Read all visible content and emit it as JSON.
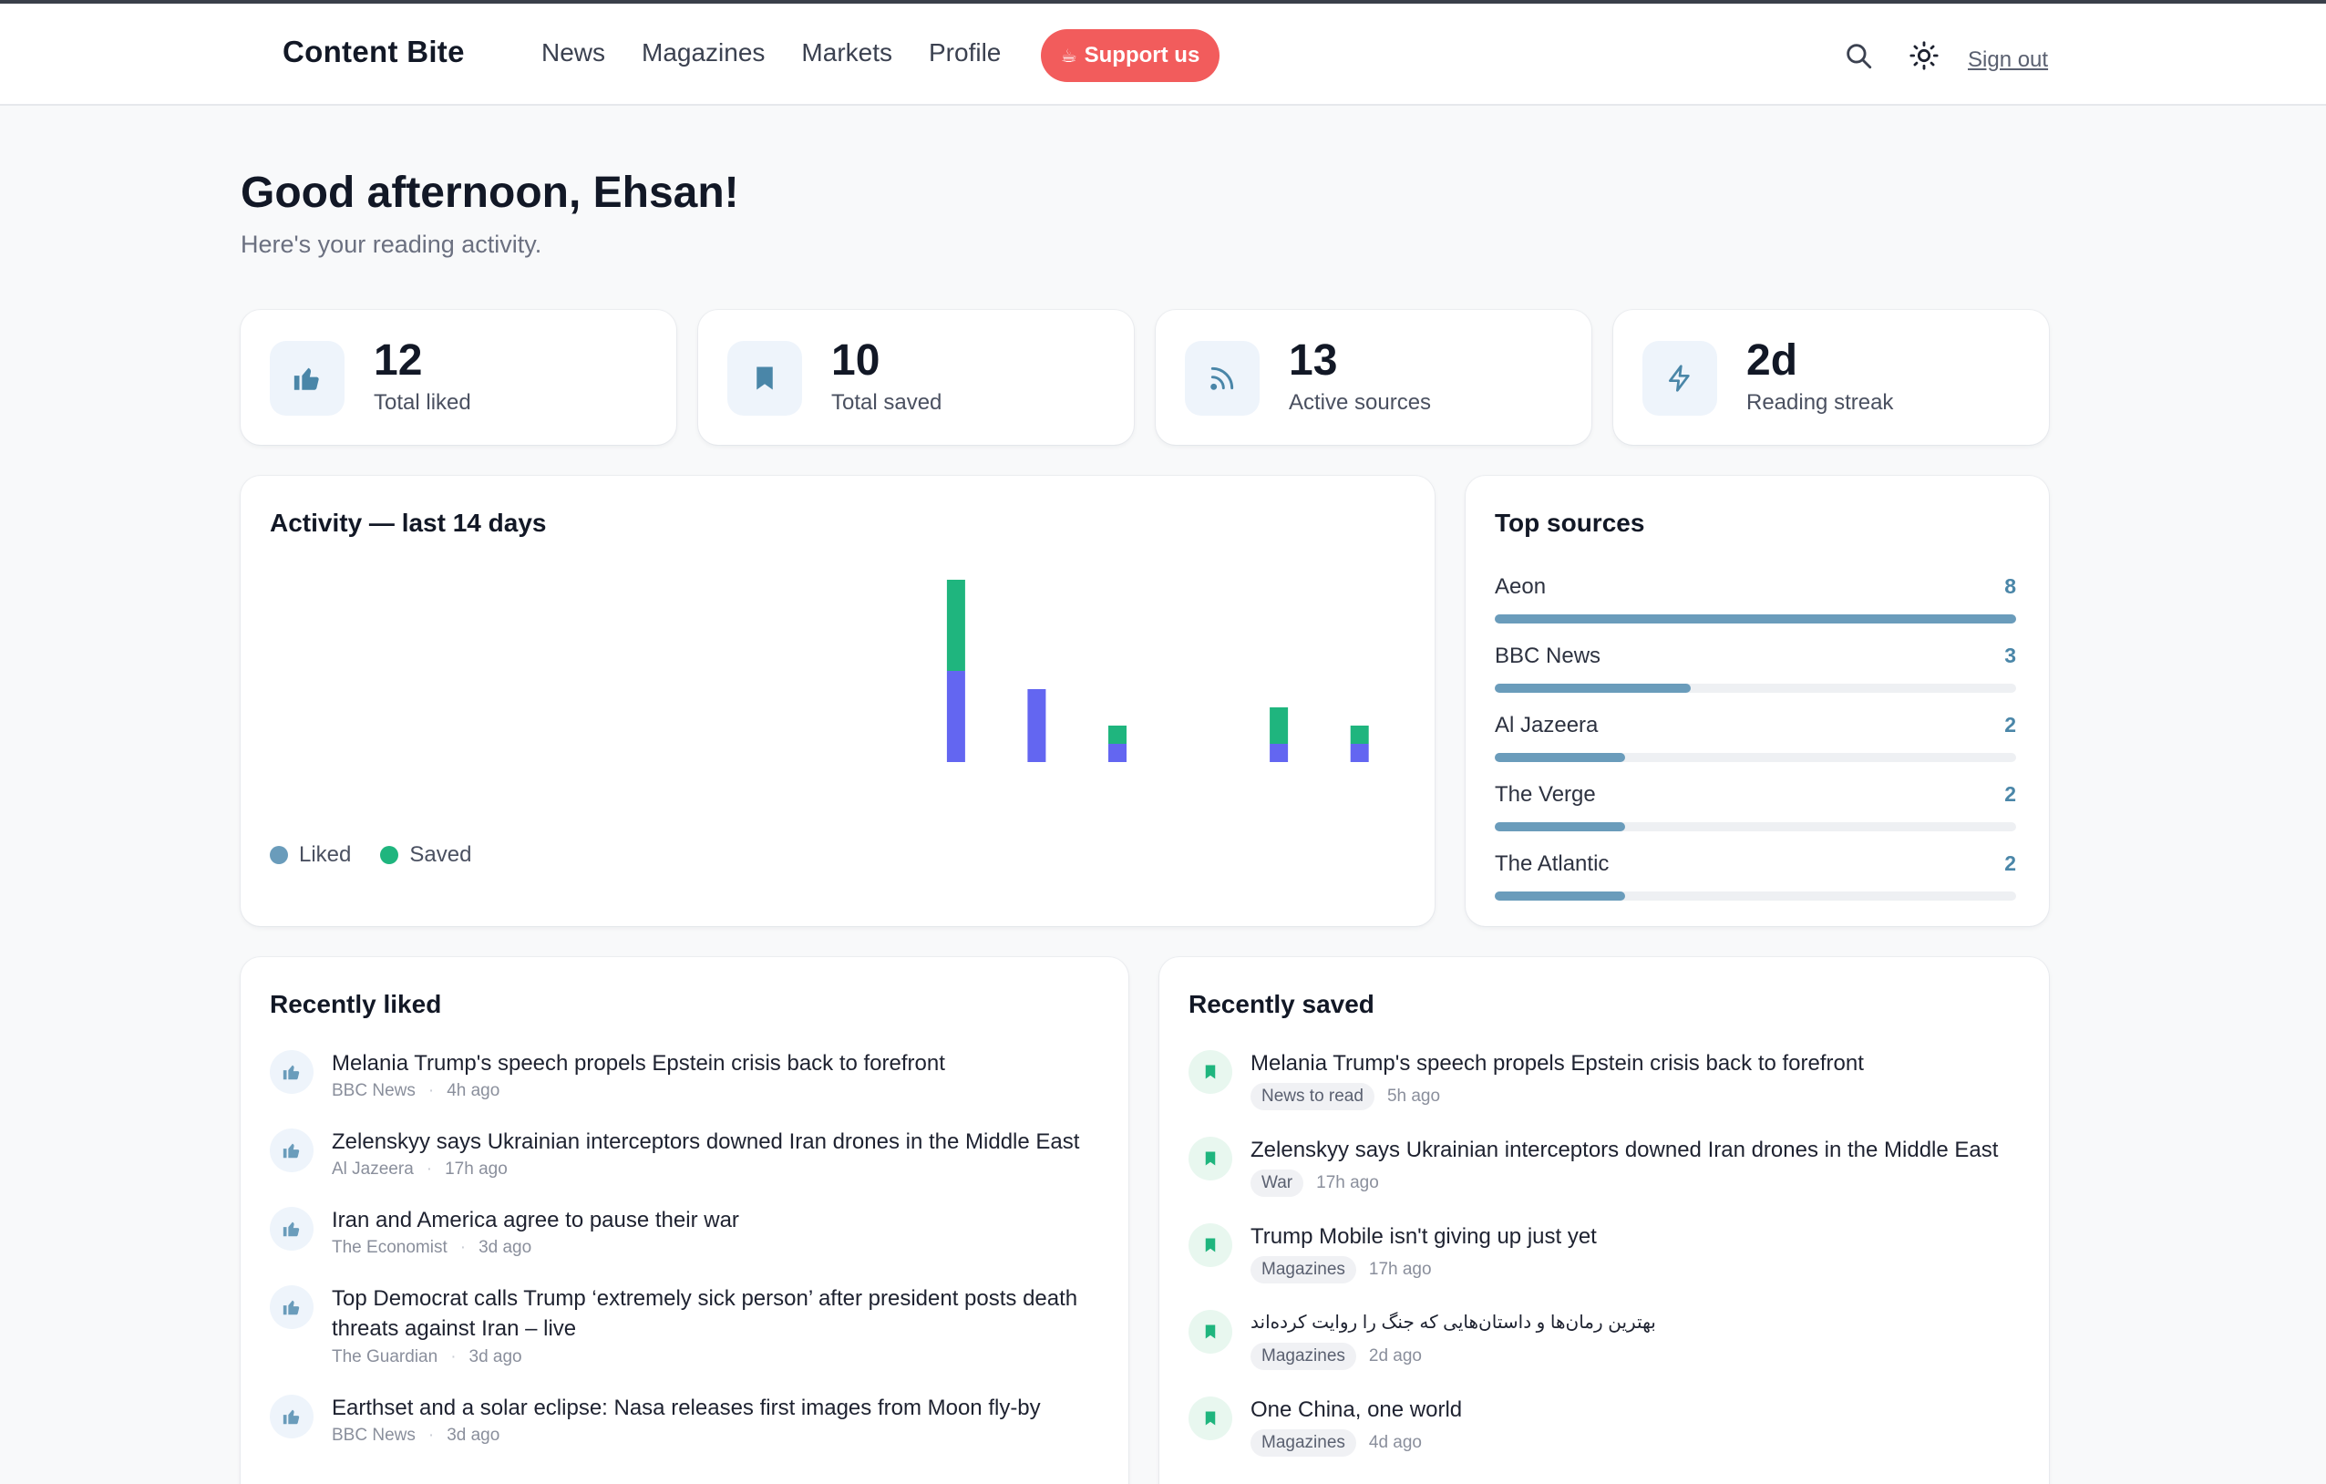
{
  "nav": {
    "brand": "Content Bite",
    "links": [
      "News",
      "Magazines",
      "Markets",
      "Profile"
    ],
    "support_label": "Support us",
    "signout_label": "Sign out"
  },
  "greeting": {
    "title": "Good afternoon, Ehsan!",
    "subtitle": "Here's your reading activity."
  },
  "stats": [
    {
      "value": "12",
      "label": "Total liked",
      "icon": "thumbs-up-icon"
    },
    {
      "value": "10",
      "label": "Total saved",
      "icon": "bookmark-icon"
    },
    {
      "value": "13",
      "label": "Active sources",
      "icon": "rss-icon"
    },
    {
      "value": "2d",
      "label": "Reading streak",
      "icon": "lightning-icon"
    }
  ],
  "activity": {
    "title": "Activity — last 14 days",
    "legend": [
      "Liked",
      "Saved"
    ]
  },
  "chart_data": {
    "type": "bar",
    "title": "Activity — last 14 days",
    "stacked": true,
    "days": 14,
    "series": [
      {
        "name": "Liked",
        "values": [
          0,
          0,
          0,
          0,
          0,
          0,
          0,
          0,
          5,
          4,
          1,
          0,
          1,
          1
        ]
      },
      {
        "name": "Saved",
        "values": [
          0,
          0,
          0,
          0,
          0,
          0,
          0,
          0,
          5,
          0,
          1,
          0,
          2,
          1
        ]
      }
    ],
    "colors": {
      "Liked": "#6366f1",
      "Saved": "#1fb57e"
    },
    "legend_colors": {
      "Liked": "#6a9cbb",
      "Saved": "#1fb57e"
    },
    "ylim": [
      0,
      10
    ],
    "grid": false,
    "legend_position": "bottom-left"
  },
  "top_sources": {
    "title": "Top sources",
    "items": [
      {
        "name": "Aeon",
        "count": 8
      },
      {
        "name": "BBC News",
        "count": 3
      },
      {
        "name": "Al Jazeera",
        "count": 2
      },
      {
        "name": "The Verge",
        "count": 2
      },
      {
        "name": "The Atlantic",
        "count": 2
      }
    ]
  },
  "recently_liked": {
    "title": "Recently liked",
    "items": [
      {
        "title": "Melania Trump's speech propels Epstein crisis back to forefront",
        "source": "BBC News",
        "time": "4h ago"
      },
      {
        "title": "Zelenskyy says Ukrainian interceptors downed Iran drones in the Middle East",
        "source": "Al Jazeera",
        "time": "17h ago"
      },
      {
        "title": "Iran and America agree to pause their war",
        "source": "The Economist",
        "time": "3d ago"
      },
      {
        "title": "Top Democrat calls Trump ‘extremely sick person’ after president posts death threats against Iran – live",
        "source": "The Guardian",
        "time": "3d ago"
      },
      {
        "title": "Earthset and a solar eclipse: Nasa releases first images from Moon fly-by",
        "source": "BBC News",
        "time": "3d ago"
      }
    ]
  },
  "recently_saved": {
    "title": "Recently saved",
    "items": [
      {
        "title": "Melania Trump's speech propels Epstein crisis back to forefront",
        "tag": "News to read",
        "time": "5h ago"
      },
      {
        "title": "Zelenskyy says Ukrainian interceptors downed Iran drones in the Middle East",
        "tag": "War",
        "time": "17h ago"
      },
      {
        "title": "Trump Mobile isn't giving up just yet",
        "tag": "Magazines",
        "time": "17h ago"
      },
      {
        "title": "بهترین رمان‌ها و داستان‌هایی که جنگ را روایت کرده‌اند",
        "tag": "Magazines",
        "time": "2d ago"
      },
      {
        "title": "One China, one world",
        "tag": "Magazines",
        "time": "4d ago"
      }
    ]
  }
}
